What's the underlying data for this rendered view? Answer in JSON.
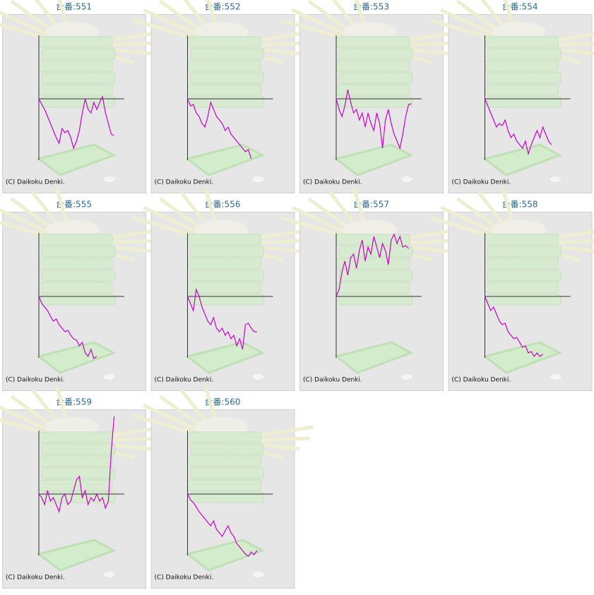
{
  "chart_data": [
    {
      "type": "line",
      "title": "台番:551",
      "credit": "(C) Daikoku Denki.",
      "color": "#cc00cc",
      "ylim": [
        -133,
        120
      ],
      "values": [
        0,
        -8,
        -15,
        -25,
        -35,
        -45,
        -55,
        -63,
        -42,
        -48,
        -45,
        -55,
        -70,
        -60,
        -45,
        -20,
        0,
        -15,
        -20,
        -5,
        -15,
        -5,
        3,
        -20,
        -35,
        -50,
        -52
      ]
    },
    {
      "type": "line",
      "title": "台番:552",
      "credit": "(C) Daikoku Denki.",
      "color": "#cc00cc",
      "ylim": [
        -133,
        120
      ],
      "values": [
        0,
        -10,
        -8,
        -20,
        -25,
        -35,
        -40,
        -25,
        -5,
        -15,
        -25,
        -30,
        -35,
        -45,
        -40,
        -50,
        -55,
        -60,
        -65,
        -70,
        -75,
        -72,
        -85
      ]
    },
    {
      "type": "line",
      "title": "台番:553",
      "credit": "(C) Daikoku Denki.",
      "color": "#cc00cc",
      "ylim": [
        -133,
        120
      ],
      "values": [
        0,
        -15,
        -25,
        -10,
        13,
        -5,
        -20,
        -15,
        -30,
        -20,
        -40,
        -20,
        -35,
        -45,
        -20,
        -35,
        -70,
        -30,
        -15,
        -35,
        -50,
        -60,
        -70,
        -50,
        -25,
        -8,
        -7
      ]
    },
    {
      "type": "line",
      "title": "台番:554",
      "credit": "(C) Daikoku Denki.",
      "color": "#cc00cc",
      "ylim": [
        -133,
        120
      ],
      "values": [
        0,
        -10,
        -20,
        -30,
        -40,
        -35,
        -38,
        -30,
        -45,
        -55,
        -50,
        -60,
        -65,
        -70,
        -60,
        -78,
        -65,
        -55,
        -45,
        -55,
        -40,
        -50,
        -60,
        -65
      ]
    },
    {
      "type": "line",
      "title": "台番:555",
      "credit": "(C) Daikoku Denki.",
      "color": "#cc00cc",
      "ylim": [
        -133,
        120
      ],
      "values": [
        0,
        -10,
        -15,
        -20,
        -28,
        -35,
        -32,
        -40,
        -45,
        -50,
        -48,
        -55,
        -60,
        -62,
        -70,
        -65,
        -80,
        -85,
        -75,
        -88,
        -85
      ]
    },
    {
      "type": "line",
      "title": "台番:556",
      "credit": "(C) Daikoku Denki.",
      "color": "#cc00cc",
      "ylim": [
        -133,
        120
      ],
      "values": [
        0,
        -10,
        -20,
        10,
        0,
        -15,
        -25,
        -35,
        -40,
        -30,
        -45,
        -50,
        -45,
        -55,
        -50,
        -60,
        -55,
        -70,
        -60,
        -75,
        -40,
        -38,
        -45,
        -50,
        -50
      ]
    },
    {
      "type": "line",
      "title": "台番:557",
      "credit": "(C) Daikoku Denki.",
      "color": "#cc00cc",
      "ylim": [
        -133,
        120
      ],
      "values": [
        0,
        10,
        35,
        50,
        30,
        55,
        60,
        40,
        65,
        80,
        50,
        70,
        60,
        85,
        70,
        55,
        75,
        65,
        45,
        80,
        88,
        75,
        85,
        70,
        72,
        68
      ]
    },
    {
      "type": "line",
      "title": "台番:558",
      "credit": "(C) Daikoku Denki.",
      "color": "#cc00cc",
      "ylim": [
        -133,
        120
      ],
      "values": [
        0,
        -10,
        -20,
        -15,
        -25,
        -35,
        -40,
        -38,
        -50,
        -55,
        -60,
        -58,
        -65,
        -72,
        -70,
        -80,
        -78,
        -85,
        -80,
        -85,
        -82
      ]
    },
    {
      "type": "line",
      "title": "台番:559",
      "credit": "(C) Daikoku Denki.",
      "color": "#cc00cc",
      "ylim": [
        -133,
        120
      ],
      "values": [
        0,
        -5,
        -15,
        5,
        -10,
        -5,
        -15,
        -25,
        -5,
        0,
        -15,
        -10,
        5,
        20,
        25,
        -5,
        5,
        -15,
        -5,
        -10,
        0,
        -10,
        -5,
        -20,
        -10,
        60,
        110
      ]
    },
    {
      "type": "line",
      "title": "台番:560",
      "credit": "(C) Daikoku Denki.",
      "color": "#cc00cc",
      "ylim": [
        -133,
        120
      ],
      "values": [
        0,
        -8,
        -12,
        -18,
        -25,
        -30,
        -35,
        -40,
        -45,
        -38,
        -50,
        -55,
        -60,
        -52,
        -45,
        -55,
        -60,
        -70,
        -75,
        -80,
        -85,
        -88,
        -82,
        -86,
        -80
      ]
    }
  ]
}
